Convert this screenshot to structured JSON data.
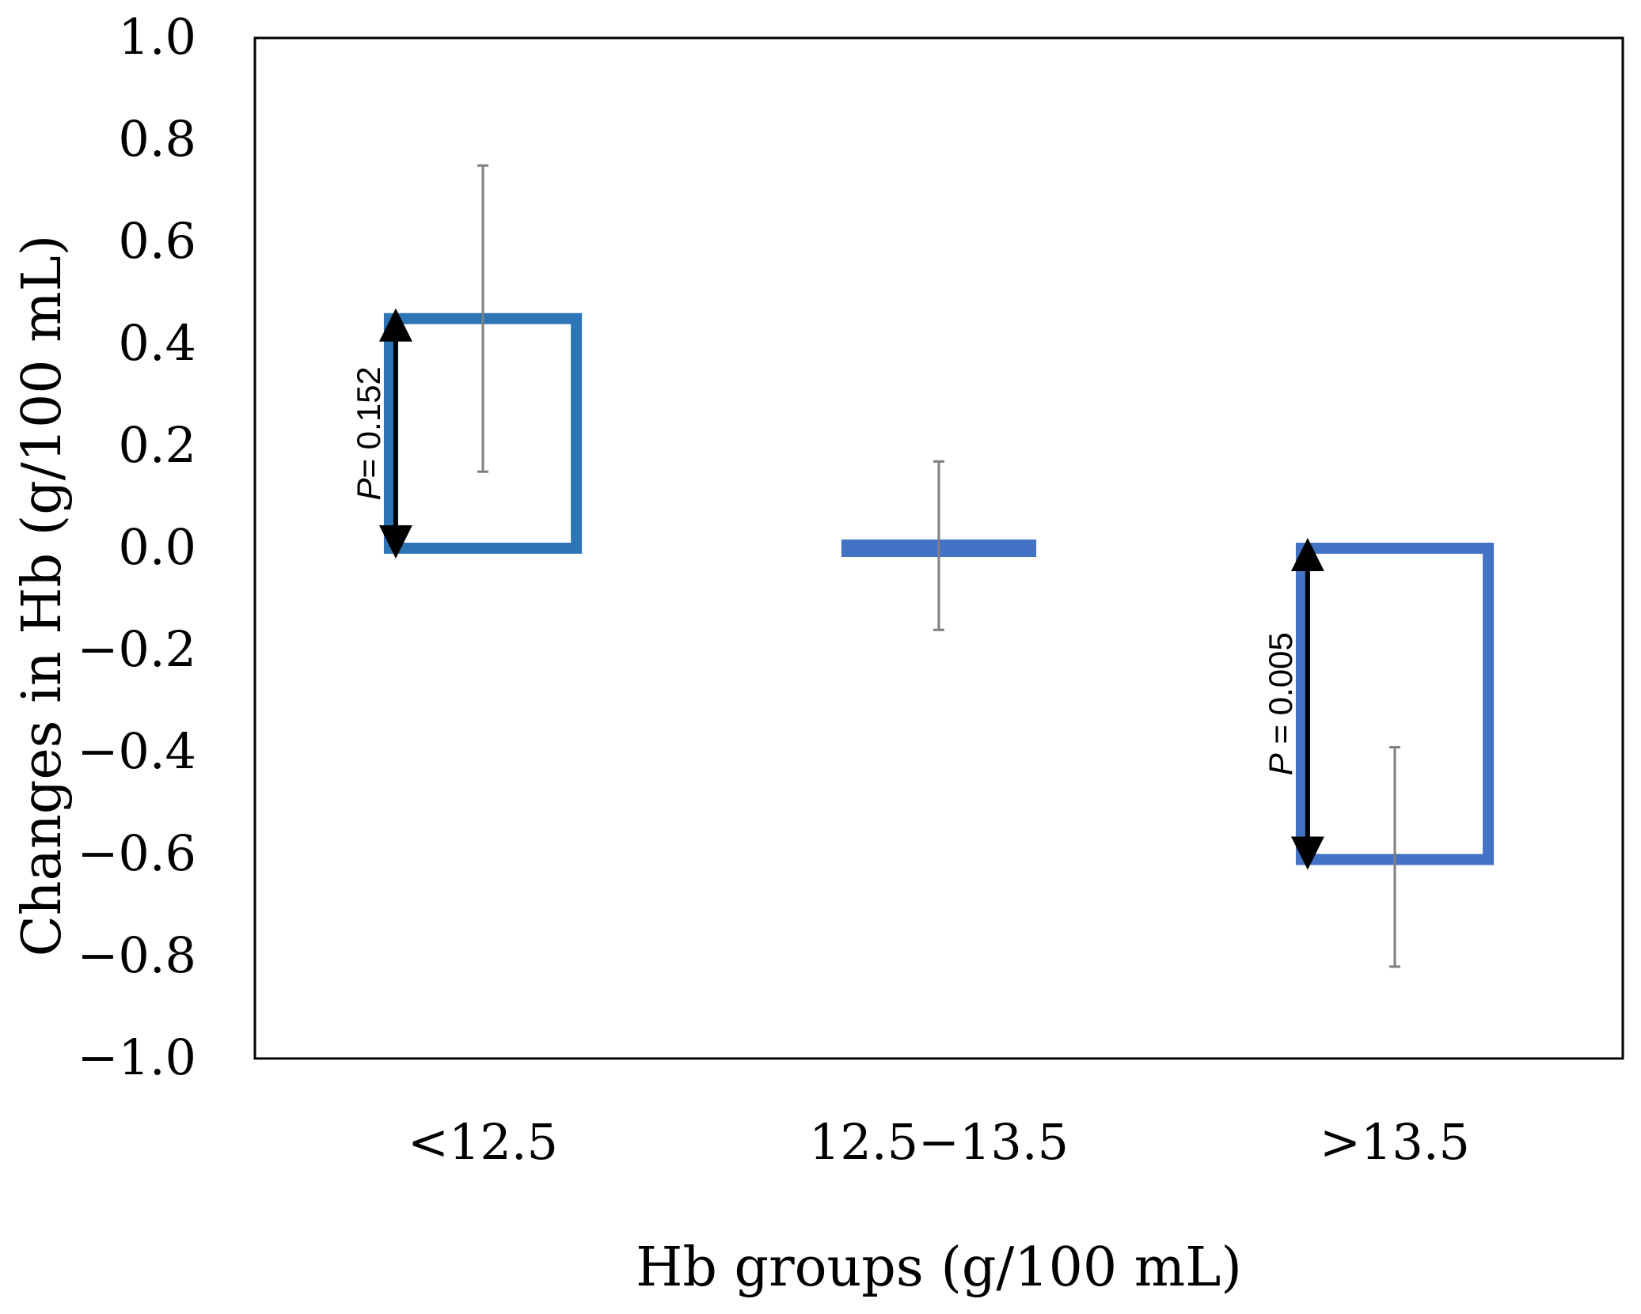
{
  "chart_data": {
    "type": "bar",
    "title": "",
    "xlabel": "Hb groups (g/100 mL)",
    "ylabel": "Changes in Hb (g/100 mL)",
    "ylim": [
      -1.0,
      1.0
    ],
    "yticks": [
      "1.0",
      "0.8",
      "0.6",
      "0.4",
      "0.2",
      "0.0",
      "−0.2",
      "−0.4",
      "−0.6",
      "−0.8",
      "−1.0"
    ],
    "ytick_values": [
      1.0,
      0.8,
      0.6,
      0.4,
      0.2,
      0.0,
      -0.2,
      -0.4,
      -0.6,
      -0.8,
      -1.0
    ],
    "categories": [
      "<12.5",
      "12.5−13.5",
      ">13.5"
    ],
    "values": [
      0.45,
      0.0,
      -0.61
    ],
    "error_low": [
      0.15,
      -0.16,
      -0.82
    ],
    "error_high": [
      0.75,
      0.17,
      -0.39
    ],
    "bar_colors": [
      "#2e75b6",
      "#4472c4",
      "#4472c4"
    ],
    "annotations": [
      {
        "category_index": 0,
        "label_p": "P",
        "label_rest": "= 0.152",
        "from": 0.0,
        "to": 0.45
      },
      {
        "category_index": 2,
        "label_p": "P",
        "label_rest": " = 0.005",
        "from": 0.0,
        "to": -0.61
      }
    ],
    "grid": false
  }
}
